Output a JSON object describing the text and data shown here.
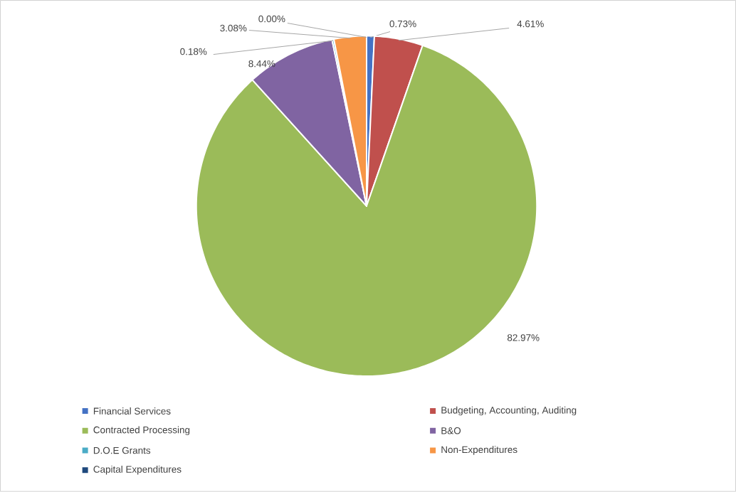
{
  "chart_data": {
    "type": "pie",
    "categories": [
      "Financial Services",
      "Budgeting, Accounting, Auditing",
      "Contracted Processing",
      "B&O",
      "D.O.E Grants",
      "Non-Expenditures",
      "Capital Expenditures"
    ],
    "values": [
      0.73,
      4.61,
      82.97,
      8.44,
      0.18,
      3.08,
      0.0
    ],
    "colors": [
      "#4472c4",
      "#c0504d",
      "#9bbb59",
      "#8064a2",
      "#4bacc6",
      "#f79646",
      "#1f497d"
    ],
    "value_labels": [
      "0.73%",
      "4.61%",
      "82.97%",
      "8.44%",
      "0.18%",
      "3.08%",
      "0.00%"
    ],
    "legend": "bottom"
  }
}
